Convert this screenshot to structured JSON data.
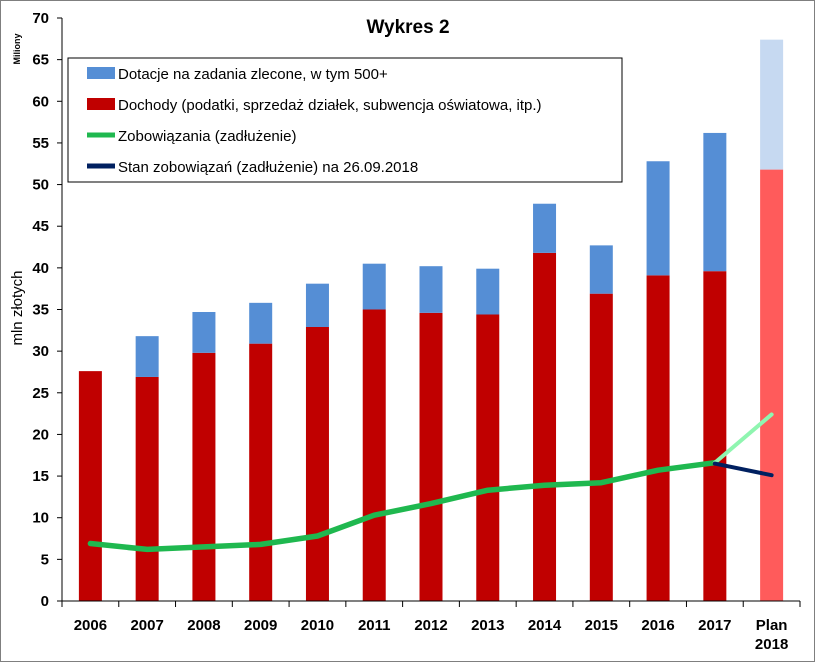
{
  "chart_data": {
    "type": "bar",
    "title": "Wykres 2",
    "ylabel": "mln złotych",
    "unit_label": "Miliony",
    "ylim": [
      0,
      70
    ],
    "y_ticks": [
      0,
      5,
      10,
      15,
      20,
      25,
      30,
      35,
      40,
      45,
      50,
      55,
      60,
      65,
      70
    ],
    "grid": false,
    "stacked": true,
    "legend_position": "top-left",
    "categories": [
      [
        "2006"
      ],
      [
        "2007"
      ],
      [
        "2008"
      ],
      [
        "2009"
      ],
      [
        "2010"
      ],
      [
        "2011"
      ],
      [
        "2012"
      ],
      [
        "2013"
      ],
      [
        "2014"
      ],
      [
        "2015"
      ],
      [
        "2016"
      ],
      [
        "2017"
      ],
      [
        "Plan",
        "2018"
      ]
    ],
    "series": [
      {
        "name": "Dochody (podatki, sprzedaż działek, subwencja oświatowa, itp.)",
        "kind": "bar",
        "color": "#c00000",
        "plan_color": "#ff5b5b",
        "values": [
          27.6,
          26.9,
          29.8,
          30.9,
          32.9,
          35.0,
          34.6,
          34.4,
          41.8,
          36.9,
          39.1,
          39.6,
          51.8
        ]
      },
      {
        "name": "Dotacje na zadania zlecone, w tym 500+",
        "kind": "bar",
        "color": "#558ed5",
        "plan_color": "#c6d9f1",
        "values": [
          0,
          4.9,
          4.9,
          4.9,
          5.2,
          5.5,
          5.6,
          5.5,
          5.9,
          5.8,
          13.7,
          16.6,
          15.6
        ]
      },
      {
        "name": "Zobowiązania (zadłużenie)",
        "kind": "line",
        "color": "#1fb84f",
        "plan_color": "#8ff5b0",
        "values": [
          6.9,
          6.2,
          6.5,
          6.8,
          7.8,
          10.3,
          11.7,
          13.3,
          13.9,
          14.2,
          15.7,
          16.6,
          22.4
        ]
      },
      {
        "name": "Stan zobowiązań (zadłużenie) na 26.09.2018",
        "kind": "line",
        "color": "#002060",
        "values": [
          null,
          null,
          null,
          null,
          null,
          null,
          null,
          null,
          null,
          null,
          null,
          16.5,
          15.1
        ]
      }
    ]
  }
}
